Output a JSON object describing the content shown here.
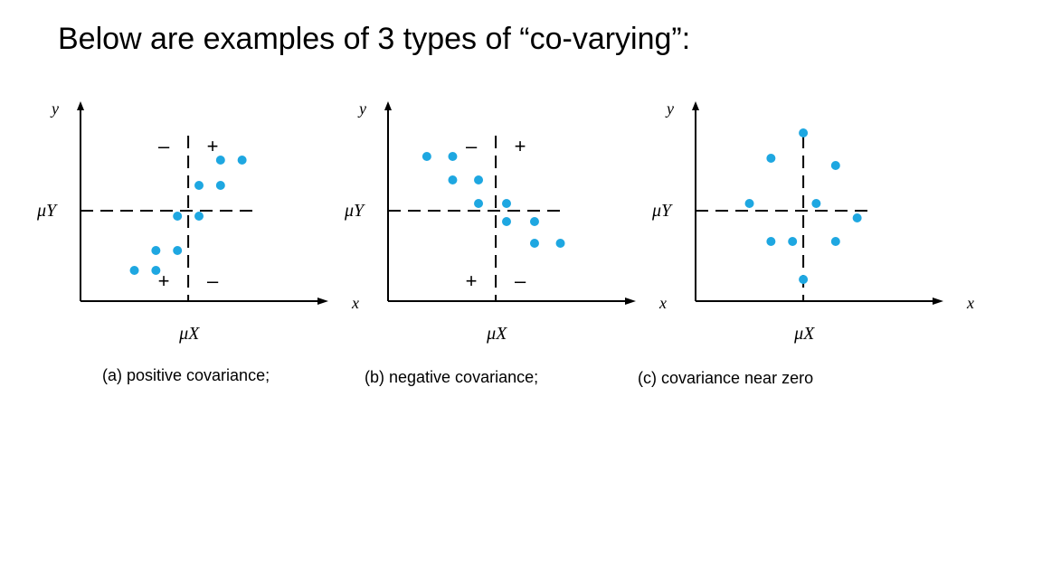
{
  "slide": {
    "title": "Below are examples of 3 types of “co-varying”:"
  },
  "colors": {
    "point": "#1ea7e1",
    "axis": "#000000"
  },
  "chart_data": [
    {
      "type": "scatter",
      "caption": "(a) positive covariance;",
      "xlabel": "x",
      "ylabel": "y",
      "mean_x_label": "μX",
      "mean_y_label": "μY",
      "quadrant_signs": {
        "top_left": "–",
        "top_right": "+",
        "bottom_left": "+",
        "bottom_right": "–"
      },
      "mean": {
        "x": 5,
        "y": 5
      },
      "xlim": [
        0,
        11
      ],
      "ylim": [
        0,
        10.5
      ],
      "points": [
        {
          "x": 2.5,
          "y": 1.7
        },
        {
          "x": 3.5,
          "y": 1.7
        },
        {
          "x": 3.5,
          "y": 2.8
        },
        {
          "x": 4.5,
          "y": 2.8
        },
        {
          "x": 4.5,
          "y": 4.7
        },
        {
          "x": 5.5,
          "y": 4.7
        },
        {
          "x": 5.5,
          "y": 6.4
        },
        {
          "x": 6.5,
          "y": 6.4
        },
        {
          "x": 6.5,
          "y": 7.8
        },
        {
          "x": 7.5,
          "y": 7.8
        }
      ]
    },
    {
      "type": "scatter",
      "caption": "(b) negative covariance;",
      "xlabel": "x",
      "ylabel": "y",
      "mean_x_label": "μX",
      "mean_y_label": "μY",
      "quadrant_signs": {
        "top_left": "–",
        "top_right": "+",
        "bottom_left": "+",
        "bottom_right": "–"
      },
      "mean": {
        "x": 5,
        "y": 5
      },
      "xlim": [
        0,
        11
      ],
      "ylim": [
        0,
        10.5
      ],
      "points": [
        {
          "x": 1.8,
          "y": 8.0
        },
        {
          "x": 3.0,
          "y": 8.0
        },
        {
          "x": 3.0,
          "y": 6.7
        },
        {
          "x": 4.2,
          "y": 6.7
        },
        {
          "x": 4.2,
          "y": 5.4
        },
        {
          "x": 5.5,
          "y": 5.4
        },
        {
          "x": 5.5,
          "y": 4.4
        },
        {
          "x": 6.8,
          "y": 4.4
        },
        {
          "x": 6.8,
          "y": 3.2
        },
        {
          "x": 8.0,
          "y": 3.2
        }
      ]
    },
    {
      "type": "scatter",
      "caption": "(c) covariance near zero",
      "xlabel": "x",
      "ylabel": "y",
      "mean_x_label": "μX",
      "mean_y_label": "μY",
      "mean": {
        "x": 5,
        "y": 5
      },
      "xlim": [
        0,
        11
      ],
      "ylim": [
        0,
        10.5
      ],
      "points": [
        {
          "x": 5.0,
          "y": 9.3
        },
        {
          "x": 3.5,
          "y": 7.9
        },
        {
          "x": 6.5,
          "y": 7.5
        },
        {
          "x": 2.5,
          "y": 5.4
        },
        {
          "x": 5.6,
          "y": 5.4
        },
        {
          "x": 7.5,
          "y": 4.6
        },
        {
          "x": 3.5,
          "y": 3.3
        },
        {
          "x": 4.5,
          "y": 3.3
        },
        {
          "x": 6.5,
          "y": 3.3
        },
        {
          "x": 5.0,
          "y": 1.2
        }
      ]
    }
  ]
}
